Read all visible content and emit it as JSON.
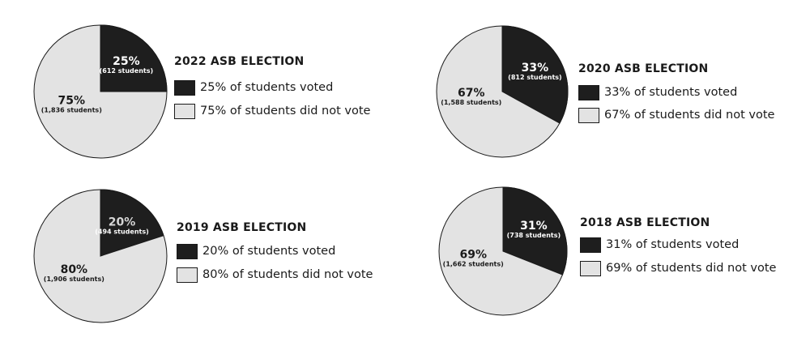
{
  "colors": {
    "voted": "#1e1e1e",
    "not_voted": "#e3e3e3",
    "outline": "#1a1a1a",
    "voted_text": "#ffffff",
    "voted_text_alt": "#d6d6d6",
    "not_voted_text": "#1a1a1a"
  },
  "chart_data": [
    {
      "type": "pie",
      "title": "2022 ASB ELECTION",
      "slices": [
        {
          "key": "voted",
          "label": "25% of students voted",
          "value": 25,
          "pct_label": "25%",
          "count_label": "(612 students)"
        },
        {
          "key": "not_voted",
          "label": "75% of students did not vote",
          "value": 75,
          "pct_label": "75%",
          "count_label": "(1,836 students)"
        }
      ]
    },
    {
      "type": "pie",
      "title": "2020 ASB ELECTION",
      "slices": [
        {
          "key": "voted",
          "label": "33% of students voted",
          "value": 33,
          "pct_label": "33%",
          "count_label": "(812 students)"
        },
        {
          "key": "not_voted",
          "label": "67% of students did not vote",
          "value": 67,
          "pct_label": "67%",
          "count_label": "(1,588 students)"
        }
      ]
    },
    {
      "type": "pie",
      "title": "2019 ASB ELECTION",
      "slices": [
        {
          "key": "voted",
          "label": "20% of students voted",
          "value": 20,
          "pct_label": "20%",
          "count_label": "(494 students)"
        },
        {
          "key": "not_voted",
          "label": "80% of students did not vote",
          "value": 80,
          "pct_label": "80%",
          "count_label": "(1,906 students)"
        }
      ]
    },
    {
      "type": "pie",
      "title": "2018 ASB ELECTION",
      "slices": [
        {
          "key": "voted",
          "label": "31% of students voted",
          "value": 31,
          "pct_label": "31%",
          "count_label": "(738 students)"
        },
        {
          "key": "not_voted",
          "label": "69% of students did not vote",
          "value": 69,
          "pct_label": "69%",
          "count_label": "(1,662 students)"
        }
      ]
    }
  ]
}
